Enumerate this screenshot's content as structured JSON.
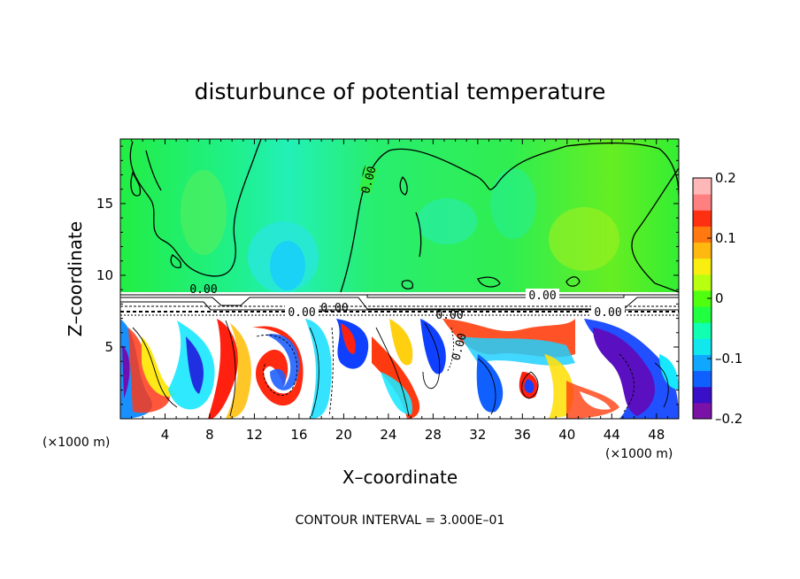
{
  "chart_data": {
    "type": "heatmap",
    "title": "disturbunce of potential temperature",
    "xlabel": "X–coordinate",
    "ylabel": "Z–coordinate",
    "x_unit_label_left": "(×1000 m)",
    "x_unit_label_right": "(×1000 m)",
    "xlim": [
      0,
      50
    ],
    "ylim": [
      0,
      19.5
    ],
    "x_ticks": [
      "4",
      "8",
      "12",
      "16",
      "20",
      "24",
      "28",
      "32",
      "36",
      "40",
      "44",
      "48"
    ],
    "y_ticks": [
      "5",
      "10",
      "15"
    ],
    "colorbar_ticks": [
      "0.2",
      "0.1",
      "0",
      "–0.1",
      "–0.2"
    ],
    "colorbar_range": [
      -0.2,
      0.2
    ],
    "colorbar_colors": [
      "#7a12a8",
      "#3a0fc8",
      "#1060ff",
      "#10a8ff",
      "#10e8ee",
      "#10ffb0",
      "#20ff40",
      "#50ff10",
      "#b8ff10",
      "#f8ee10",
      "#ffb810",
      "#ff7810",
      "#ff3010",
      "#ff8080",
      "#ffb8b8"
    ],
    "contour_labels": [
      "0.00",
      "0.00",
      "0.00",
      "0.00",
      "0.00",
      "0.00",
      "0.00",
      "0.00"
    ],
    "contour_interval_text": "CONTOUR INTERVAL = 3.000E–01"
  }
}
